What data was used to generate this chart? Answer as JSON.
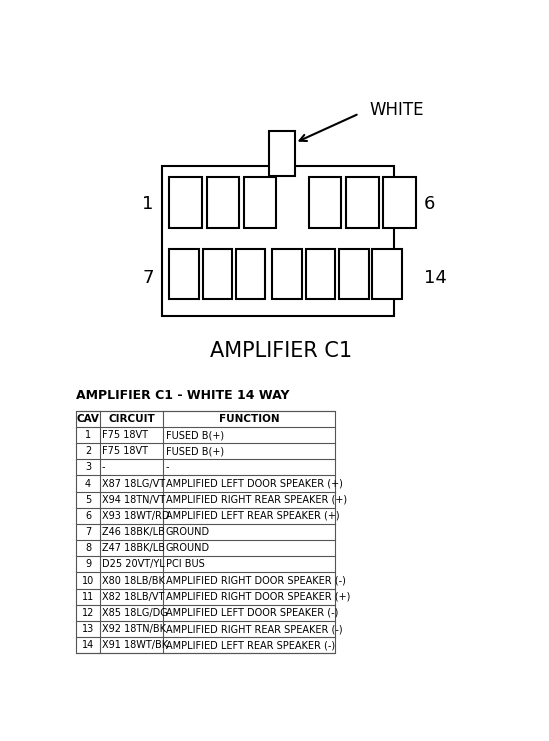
{
  "title_diagram": "AMPLIFIER C1",
  "label_white": "WHITE",
  "label_left_top": "1",
  "label_right_top": "6",
  "label_left_bottom": "7",
  "label_right_bottom": "14",
  "table_title": "AMPLIFIER C1 - WHITE 14 WAY",
  "col_headers": [
    "CAV",
    "CIRCUIT",
    "FUNCTION"
  ],
  "rows": [
    [
      "1",
      "F75 18VT",
      "FUSED B(+)"
    ],
    [
      "2",
      "F75 18VT",
      "FUSED B(+)"
    ],
    [
      "3",
      "-",
      "-"
    ],
    [
      "4",
      "X87 18LG/VT",
      "AMPLIFIED LEFT DOOR SPEAKER (+)"
    ],
    [
      "5",
      "X94 18TN/VT",
      "AMPLIFIED RIGHT REAR SPEAKER (+)"
    ],
    [
      "6",
      "X93 18WT/RD",
      "AMPLIFIED LEFT REAR SPEAKER (+)"
    ],
    [
      "7",
      "Z46 18BK/LB",
      "GROUND"
    ],
    [
      "8",
      "Z47 18BK/LB",
      "GROUND"
    ],
    [
      "9",
      "D25 20VT/YL",
      "PCI BUS"
    ],
    [
      "10",
      "X80 18LB/BK",
      "AMPLIFIED RIGHT DOOR SPEAKER (-)"
    ],
    [
      "11",
      "X82 18LB/VT",
      "AMPLIFIED RIGHT DOOR SPEAKER (+)"
    ],
    [
      "12",
      "X85 18LG/DG",
      "AMPLIFIED LEFT DOOR SPEAKER (-)"
    ],
    [
      "13",
      "X92 18TN/BK",
      "AMPLIFIED RIGHT REAR SPEAKER (-)"
    ],
    [
      "14",
      "X91 18WT/BK",
      "AMPLIFIED LEFT REAR SPEAKER (-)"
    ]
  ],
  "bg_color": "#ffffff",
  "text_color": "#000000",
  "connector_color": "#000000"
}
